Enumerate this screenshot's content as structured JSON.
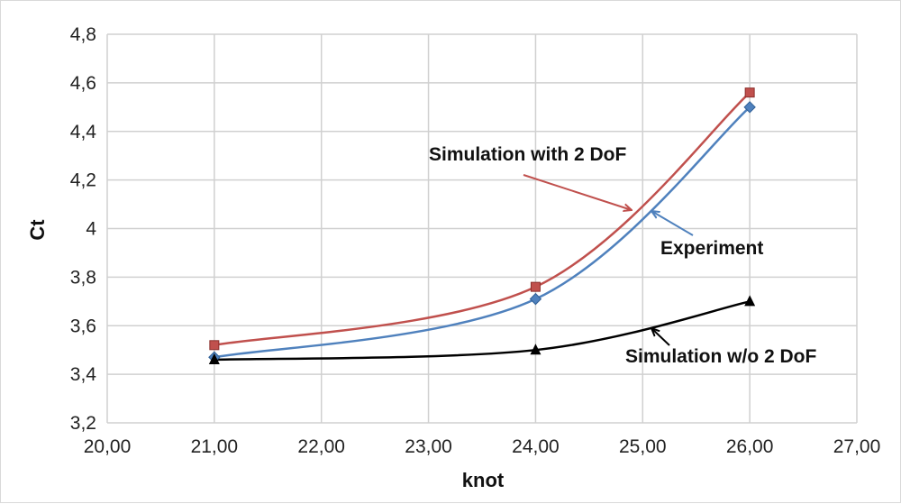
{
  "chart_data": {
    "type": "line",
    "title": "",
    "xlabel": "knot",
    "ylabel": "Ct",
    "xlim": [
      20,
      27
    ],
    "ylim": [
      3.2,
      4.8
    ],
    "x_ticks": [
      "20,00",
      "21,00",
      "22,00",
      "23,00",
      "24,00",
      "25,00",
      "26,00",
      "27,00"
    ],
    "y_ticks": [
      "3,2",
      "3,4",
      "3,6",
      "3,8",
      "4",
      "4,2",
      "4,4",
      "4,6",
      "4,8"
    ],
    "grid": true,
    "series": [
      {
        "name": "Simulation with 2 DoF",
        "marker": "square",
        "color": "#c0504d",
        "x": [
          21,
          24,
          26
        ],
        "y": [
          3.52,
          3.76,
          4.56
        ]
      },
      {
        "name": "Experiment",
        "marker": "diamond",
        "color": "#4f81bd",
        "x": [
          21,
          24,
          26
        ],
        "y": [
          3.47,
          3.71,
          4.5
        ]
      },
      {
        "name": "Simulation w/o 2 DoF",
        "marker": "triangle",
        "color": "#000000",
        "x": [
          21,
          24,
          26
        ],
        "y": [
          3.46,
          3.5,
          3.7
        ]
      }
    ]
  }
}
